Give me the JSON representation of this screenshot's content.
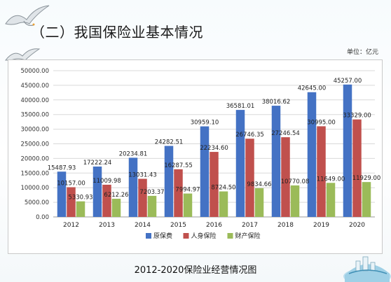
{
  "slide": {
    "heading": "（二）我国保险业基本情况",
    "unit": "单位：亿元",
    "caption": "2012-2020保险业经营情况图"
  },
  "colors": {
    "series": [
      "#4472c4",
      "#c0504d",
      "#9bbb59"
    ]
  },
  "chart_data": {
    "type": "bar",
    "categories": [
      "2012",
      "2013",
      "2014",
      "2015",
      "2016",
      "2017",
      "2018",
      "2019",
      "2020"
    ],
    "series": [
      {
        "name": "原保费",
        "values": [
          15487.93,
          17222.24,
          20234.81,
          24282.51,
          30959.1,
          36581.01,
          38016.62,
          42645.0,
          45257.0
        ],
        "labels": [
          "15487.93",
          "17222.24",
          "20234.81",
          "24282.51",
          "30959.10",
          "36581.01",
          "38016.62",
          "42645.00",
          "45257.00"
        ]
      },
      {
        "name": "人身保险",
        "values": [
          10157.0,
          11009.98,
          13031.43,
          16287.55,
          22234.6,
          26746.35,
          27246.54,
          30995.0,
          33329.0
        ],
        "labels": [
          "10157.00",
          "11009.98",
          "13031.43",
          "16287.55",
          "22234.60",
          "26746.35",
          "27246.54",
          "30995.00",
          "33329.00"
        ]
      },
      {
        "name": "财产保险",
        "values": [
          5330.93,
          6212.26,
          7203.37,
          7994.97,
          8724.5,
          9834.66,
          10770.08,
          11649.0,
          11929.0
        ],
        "labels": [
          "5330.93",
          "6212.26",
          "7203.37",
          "7994.97",
          "8724.50",
          "9834.66",
          "10770.08",
          "11649.00",
          "11929.00"
        ]
      }
    ],
    "yticks": [
      "0.00",
      "5000.00",
      "10000.00",
      "15000.00",
      "20000.00",
      "25000.00",
      "30000.00",
      "35000.00",
      "40000.00",
      "45000.00",
      "50000.00"
    ],
    "ylim": [
      0,
      50000
    ],
    "grid": true,
    "legend_position": "bottom"
  }
}
